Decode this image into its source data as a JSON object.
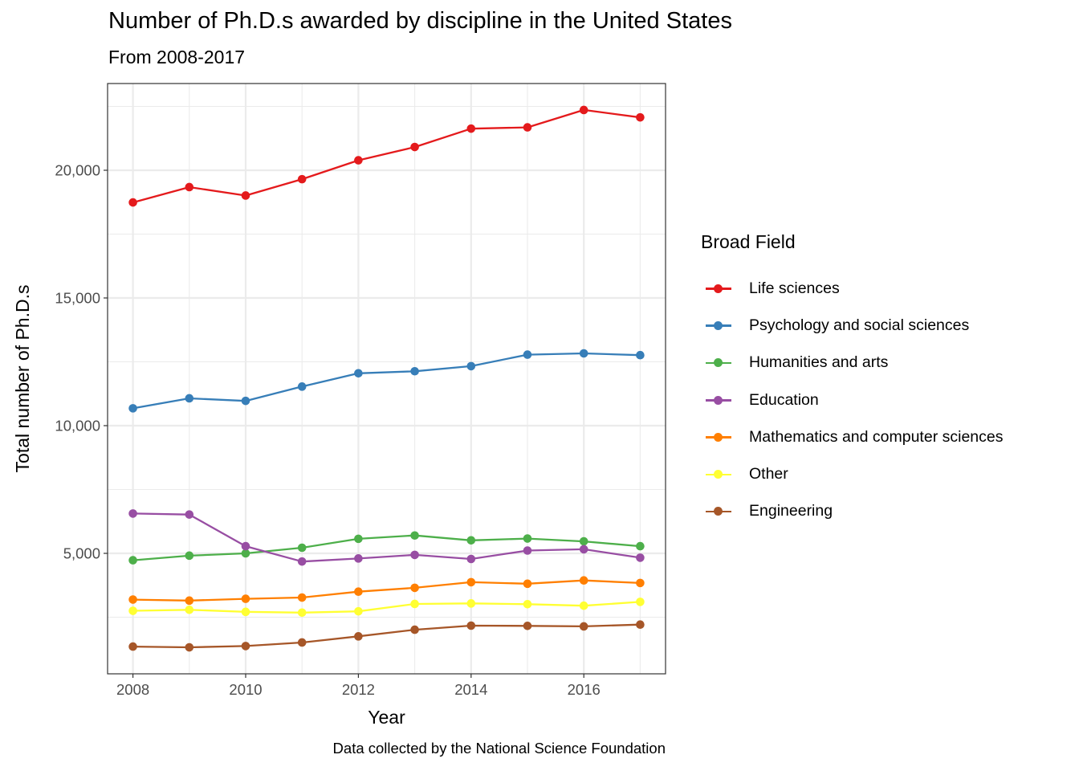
{
  "chart_data": {
    "type": "line",
    "title": "Number of Ph.D.s awarded by discipline in the United States",
    "subtitle": "From 2008-2017",
    "caption": "Data collected by the National Science Foundation",
    "xlabel": "Year",
    "ylabel": "Total number of Ph.D.s",
    "x": [
      2008,
      2009,
      2010,
      2011,
      2012,
      2013,
      2014,
      2015,
      2016,
      2017
    ],
    "xlim": [
      2007.55,
      2017.45
    ],
    "ylim": [
      283,
      23396
    ],
    "x_ticks": [
      2008,
      2010,
      2012,
      2014,
      2016
    ],
    "x_tick_labels": [
      "2008",
      "2010",
      "2012",
      "2014",
      "2016"
    ],
    "y_ticks": [
      5000,
      10000,
      15000,
      20000
    ],
    "y_tick_labels": [
      "5,000",
      "10,000",
      "15,000",
      "20,000"
    ],
    "y_minor_ticks": [
      2500,
      7500,
      12500,
      17500,
      22500
    ],
    "x_minor_ticks": [
      2009,
      2011,
      2013,
      2015,
      2017
    ],
    "grid": true,
    "legend": {
      "title": "Broad Field",
      "position": "right"
    },
    "series": [
      {
        "name": "Life sciences",
        "color": "#E41A1C",
        "values": [
          18740,
          19340,
          19010,
          19650,
          20390,
          20910,
          21630,
          21680,
          22360,
          22070
        ]
      },
      {
        "name": "Psychology and social sciences",
        "color": "#377EB8",
        "values": [
          10680,
          11070,
          10970,
          11530,
          12050,
          12130,
          12330,
          12780,
          12830,
          12760
        ]
      },
      {
        "name": "Humanities and arts",
        "color": "#4DAF4A",
        "values": [
          4730,
          4910,
          5000,
          5220,
          5570,
          5700,
          5510,
          5580,
          5470,
          5280
        ]
      },
      {
        "name": "Education",
        "color": "#984EA3",
        "values": [
          6560,
          6520,
          5280,
          4680,
          4800,
          4940,
          4780,
          5110,
          5160,
          4830
        ]
      },
      {
        "name": "Mathematics and computer sciences",
        "color": "#FF7F00",
        "values": [
          3190,
          3150,
          3220,
          3270,
          3500,
          3650,
          3870,
          3810,
          3940,
          3840
        ]
      },
      {
        "name": "Other",
        "color": "#FFFF33",
        "values": [
          2750,
          2790,
          2710,
          2680,
          2730,
          3020,
          3040,
          3010,
          2950,
          3100
        ]
      },
      {
        "name": "Engineering",
        "color": "#A65628",
        "values": [
          1350,
          1320,
          1370,
          1510,
          1750,
          2010,
          2170,
          2160,
          2140,
          2210
        ]
      }
    ]
  }
}
